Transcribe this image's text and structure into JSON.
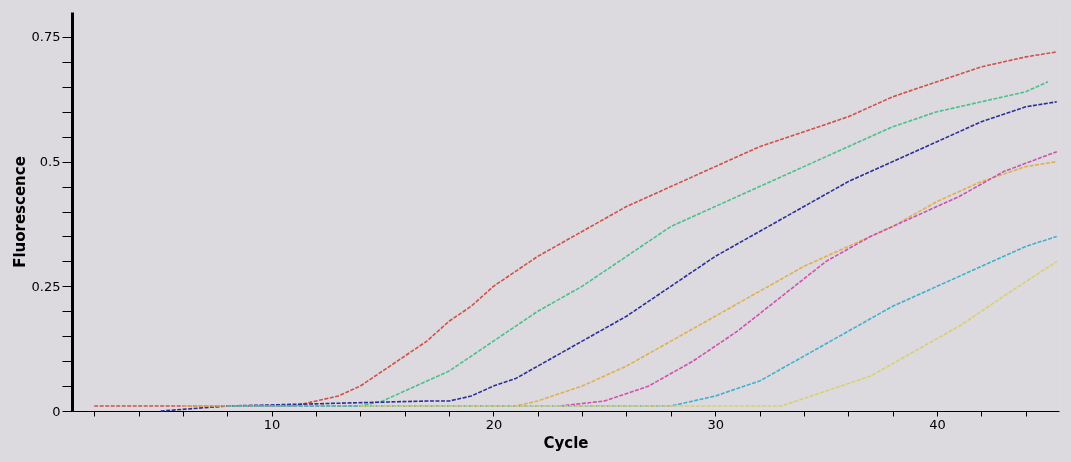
{
  "chart_data": {
    "type": "line",
    "xlabel": "Cycle",
    "ylabel": "Fluorescence",
    "xlim": [
      1,
      45.5
    ],
    "ylim": [
      0,
      0.8
    ],
    "xticks": [
      {
        "value": 2,
        "label": null
      },
      {
        "value": 4,
        "label": null
      },
      {
        "value": 6,
        "label": null
      },
      {
        "value": 8,
        "label": null
      },
      10,
      {
        "value": 12,
        "label": null
      },
      {
        "value": 14,
        "label": null
      },
      {
        "value": 16,
        "label": null
      },
      {
        "value": 18,
        "label": null
      },
      20,
      {
        "value": 22,
        "label": null
      },
      {
        "value": 24,
        "label": null
      },
      {
        "value": 26,
        "label": null
      },
      {
        "value": 28,
        "label": null
      },
      30,
      {
        "value": 32,
        "label": null
      },
      {
        "value": 34,
        "label": null
      },
      {
        "value": 36,
        "label": null
      },
      {
        "value": 38,
        "label": null
      },
      40,
      {
        "value": 42,
        "label": null
      },
      {
        "value": 44,
        "label": null
      }
    ],
    "yticks": [
      0,
      {
        "value": 0.05,
        "label": null
      },
      {
        "value": 0.1,
        "label": null
      },
      {
        "value": 0.15,
        "label": null
      },
      {
        "value": 0.2,
        "label": null
      },
      0.25,
      {
        "value": 0.3,
        "label": null
      },
      {
        "value": 0.35,
        "label": null
      },
      {
        "value": 0.4,
        "label": null
      },
      {
        "value": 0.45,
        "label": null
      },
      0.5,
      {
        "value": 0.55,
        "label": null
      },
      {
        "value": 0.6,
        "label": null
      },
      {
        "value": 0.65,
        "label": null
      },
      {
        "value": 0.7,
        "label": null
      },
      0.75
    ],
    "legend": false,
    "line_style": "dashed",
    "marker": "none",
    "series": [
      {
        "color": "#d0504a",
        "x": [
          2,
          6,
          11,
          12,
          13,
          14,
          15,
          16,
          17,
          18,
          19,
          20,
          22,
          24,
          26,
          28,
          30,
          32,
          34,
          36,
          38,
          40,
          42,
          44,
          45.4
        ],
        "values": [
          0.01,
          0.01,
          0.01,
          0.02,
          0.03,
          0.05,
          0.08,
          0.11,
          0.14,
          0.18,
          0.21,
          0.25,
          0.31,
          0.36,
          0.41,
          0.45,
          0.49,
          0.53,
          0.56,
          0.59,
          0.63,
          0.66,
          0.69,
          0.71,
          0.72
        ]
      },
      {
        "color": "#4cc08a",
        "x": [
          8,
          14,
          15,
          16,
          17,
          18,
          19,
          20,
          22,
          24,
          26,
          28,
          30,
          32,
          34,
          36,
          38,
          40,
          42,
          44,
          45
        ],
        "values": [
          0.01,
          0.01,
          0.02,
          0.04,
          0.06,
          0.08,
          0.11,
          0.14,
          0.2,
          0.25,
          0.31,
          0.37,
          0.41,
          0.45,
          0.49,
          0.53,
          0.57,
          0.6,
          0.62,
          0.64,
          0.66
        ]
      },
      {
        "color": "#2a2f9a",
        "x": [
          5,
          8,
          17,
          18,
          19,
          20,
          21,
          22,
          24,
          26,
          28,
          30,
          32,
          34,
          36,
          38,
          40,
          42,
          44,
          45.4
        ],
        "values": [
          0.0,
          0.01,
          0.02,
          0.02,
          0.03,
          0.05,
          0.065,
          0.09,
          0.14,
          0.19,
          0.25,
          0.31,
          0.36,
          0.41,
          0.46,
          0.5,
          0.54,
          0.58,
          0.61,
          0.62
        ]
      },
      {
        "color": "#e0b050",
        "x": [
          6,
          21,
          22,
          24,
          26,
          28,
          30,
          32,
          34,
          36,
          38,
          40,
          42,
          44,
          45.4
        ],
        "values": [
          0.01,
          0.01,
          0.02,
          0.05,
          0.09,
          0.14,
          0.19,
          0.24,
          0.29,
          0.33,
          0.37,
          0.42,
          0.46,
          0.49,
          0.5
        ]
      },
      {
        "color": "#d050b0",
        "x": [
          23,
          25,
          27,
          29,
          31,
          33,
          35,
          37,
          39,
          41,
          43,
          45.4
        ],
        "values": [
          0.01,
          0.02,
          0.05,
          0.1,
          0.16,
          0.23,
          0.3,
          0.35,
          0.39,
          0.43,
          0.48,
          0.52
        ]
      },
      {
        "color": "#40b0d0",
        "x": [
          8,
          28,
          30,
          32,
          34,
          36,
          38,
          40,
          42,
          44,
          45.4
        ],
        "values": [
          0.01,
          0.01,
          0.03,
          0.06,
          0.11,
          0.16,
          0.21,
          0.25,
          0.29,
          0.33,
          0.35
        ]
      },
      {
        "color": "#d8d070",
        "x": [
          14,
          33,
          35,
          37,
          39,
          41,
          43,
          45.4
        ],
        "values": [
          0.01,
          0.01,
          0.04,
          0.07,
          0.12,
          0.17,
          0.23,
          0.3
        ]
      }
    ]
  }
}
